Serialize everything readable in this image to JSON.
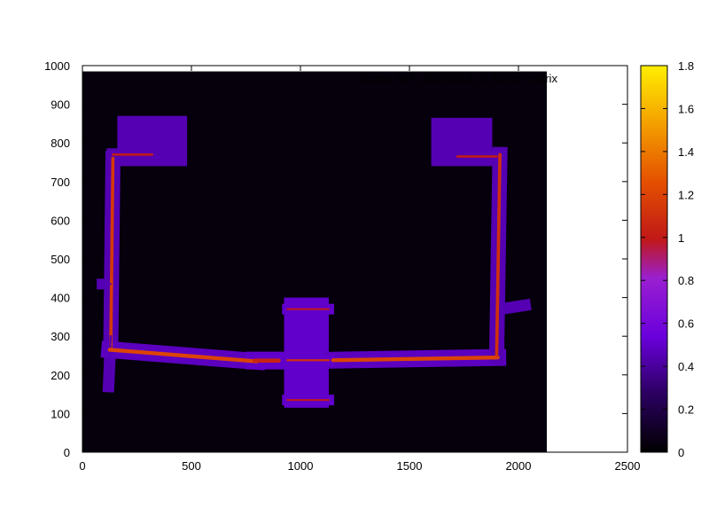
{
  "chart_data": {
    "type": "heatmap",
    "title": "",
    "legend_entry": "'Sonia-SeT_20190912_0_10.txt' matrix",
    "xlabel": "",
    "ylabel": "",
    "xlim": [
      0,
      2500
    ],
    "ylim": [
      0,
      1000
    ],
    "x_ticks": [
      "0",
      "500",
      "1000",
      "1500",
      "2000",
      "2500"
    ],
    "y_ticks": [
      "0",
      "100",
      "200",
      "300",
      "400",
      "500",
      "600",
      "700",
      "800",
      "900",
      "1000"
    ],
    "data_extent": {
      "x": [
        0,
        2130
      ],
      "y": [
        0,
        985
      ]
    },
    "colorbar": {
      "range": [
        0,
        1.8
      ],
      "ticks": [
        "0",
        "0.2",
        "0.4",
        "0.6",
        "0.8",
        "1",
        "1.2",
        "1.4",
        "1.6",
        "1.8"
      ],
      "palette": "gnuplot pm3d default (black-purple-red-orange-yellow)"
    },
    "background_value": 0.03,
    "segments": [
      {
        "name": "left-corridor",
        "x": [
          130,
          140
        ],
        "y": [
          270,
          760
        ],
        "value": 1.15,
        "halo": 0.45,
        "width": 22
      },
      {
        "name": "left-corridor-lower",
        "x": [
          120,
          130
        ],
        "y": [
          170,
          300
        ],
        "value": 0.45,
        "halo": 0.45,
        "width": 14
      },
      {
        "name": "bottom-left-corridor",
        "x": [
          125,
          800
        ],
        "y": [
          265,
          235
        ],
        "value": 1.2,
        "halo": 0.48,
        "width": 26
      },
      {
        "name": "left-hub-passage",
        "x": [
          790,
          900
        ],
        "y": [
          237,
          237
        ],
        "value": 1.05,
        "halo": 0.5,
        "width": 28
      },
      {
        "name": "bottom-right-corridor",
        "x": [
          1150,
          1905
        ],
        "y": [
          238,
          245
        ],
        "value": 1.2,
        "halo": 0.48,
        "width": 26
      },
      {
        "name": "right-corridor",
        "x": [
          1900,
          1915
        ],
        "y": [
          250,
          770
        ],
        "value": 1.1,
        "halo": 0.45,
        "width": 22
      },
      {
        "name": "right-corridor-spur",
        "x": [
          1915,
          2030
        ],
        "y": [
          370,
          380
        ],
        "value": 0.45,
        "halo": 0.45,
        "width": 14
      },
      {
        "name": "left-spur",
        "x": [
          90,
          130
        ],
        "y": [
          435,
          435
        ],
        "value": 0.45,
        "halo": 0.45,
        "width": 12
      },
      {
        "name": "top-left-link",
        "x": [
          140,
          320
        ],
        "y": [
          770,
          770
        ],
        "value": 1.0,
        "halo": 0.45,
        "width": 16
      },
      {
        "name": "top-right-link",
        "x": [
          1720,
          1900
        ],
        "y": [
          765,
          765
        ],
        "value": 1.0,
        "halo": 0.45,
        "width": 16
      },
      {
        "name": "center-hub-mid",
        "x": [
          940,
          1130
        ],
        "y": [
          238,
          238
        ],
        "value": 1.1,
        "halo": 0.5,
        "width": 14
      },
      {
        "name": "center-hub-bottom",
        "x": [
          940,
          1130
        ],
        "y": [
          135,
          135
        ],
        "value": 1.0,
        "halo": 0.5,
        "width": 12
      },
      {
        "name": "center-hub-top",
        "x": [
          940,
          1130
        ],
        "y": [
          370,
          370
        ],
        "value": 1.0,
        "halo": 0.5,
        "width": 12
      }
    ],
    "blocks": [
      {
        "name": "center-hub",
        "x": [
          925,
          1130
        ],
        "y": [
          115,
          400
        ],
        "value": 0.5
      },
      {
        "name": "top-left-room",
        "x": [
          160,
          480
        ],
        "y": [
          740,
          870
        ],
        "value": 0.45
      },
      {
        "name": "top-right-room",
        "x": [
          1600,
          1880
        ],
        "y": [
          740,
          865
        ],
        "value": 0.45
      }
    ]
  }
}
